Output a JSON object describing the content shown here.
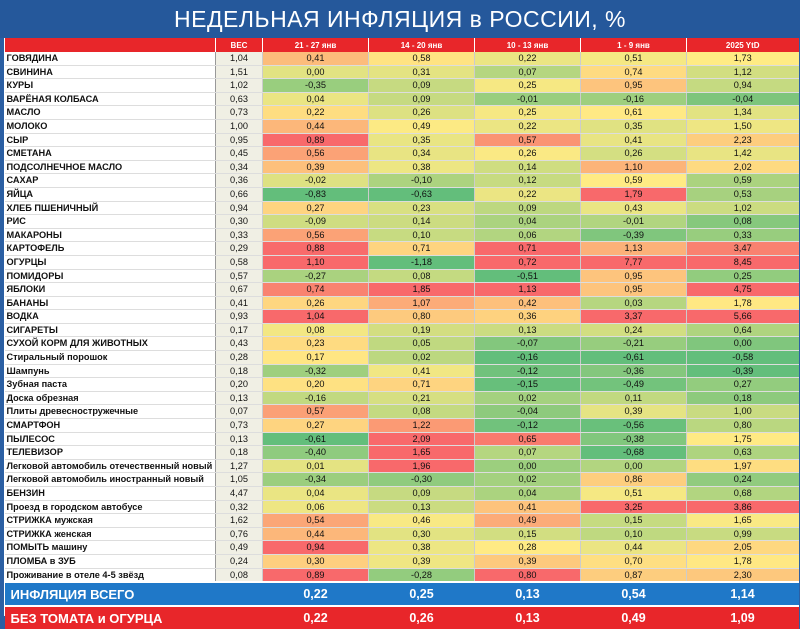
{
  "title": "НЕДЕЛЬНАЯ ИНФЛЯЦИЯ в РОССИИ, %",
  "colors": {
    "title_bg": "#25589b",
    "header_bg": "#e8262a",
    "total_bg": "#1f78c8",
    "excl_bg": "#e8262a"
  },
  "chart_data": {
    "type": "table",
    "columns": [
      "",
      "ВЕС",
      "21 - 27 янв",
      "14 - 20 янв",
      "10 - 13 янв",
      "1 - 9 янв",
      "2025 YtD"
    ],
    "rows": [
      {
        "name": "ГОВЯДИНА",
        "weight": "1,04",
        "v": [
          "0,41",
          "0,58",
          "0,22",
          "0,51",
          "1,73"
        ],
        "sep": false
      },
      {
        "name": "СВИНИНА",
        "weight": "1,51",
        "v": [
          "0,00",
          "0,31",
          "0,07",
          "0,74",
          "1,12"
        ],
        "sep": false
      },
      {
        "name": "КУРЫ",
        "weight": "1,02",
        "v": [
          "-0,35",
          "0,09",
          "0,25",
          "0,95",
          "0,94"
        ],
        "sep": false
      },
      {
        "name": "ВАРЁНАЯ КОЛБАСА",
        "weight": "0,63",
        "v": [
          "0,04",
          "0,09",
          "-0,01",
          "-0,16",
          "-0,04"
        ],
        "sep": false
      },
      {
        "name": "МАСЛО",
        "weight": "0,73",
        "v": [
          "0,22",
          "0,26",
          "0,25",
          "0,61",
          "1,34"
        ],
        "sep": true
      },
      {
        "name": "МОЛОКО",
        "weight": "1,00",
        "v": [
          "0,44",
          "0,49",
          "0,22",
          "0,35",
          "1,50"
        ],
        "sep": false
      },
      {
        "name": "СЫР",
        "weight": "0,95",
        "v": [
          "0,89",
          "0,35",
          "0,57",
          "0,41",
          "2,23"
        ],
        "sep": false
      },
      {
        "name": "СМЕТАНА",
        "weight": "0,45",
        "v": [
          "0,56",
          "0,34",
          "0,26",
          "0,26",
          "1,42"
        ],
        "sep": false
      },
      {
        "name": "ПОДСОЛНЕЧНОЕ МАСЛО",
        "weight": "0,34",
        "v": [
          "0,39",
          "0,38",
          "0,14",
          "1,10",
          "2,02"
        ],
        "sep": true
      },
      {
        "name": "САХАР",
        "weight": "0,36",
        "v": [
          "-0,02",
          "-0,10",
          "0,12",
          "0,59",
          "0,59"
        ],
        "sep": false
      },
      {
        "name": "ЯЙЦА",
        "weight": "0,66",
        "v": [
          "-0,83",
          "-0,63",
          "0,22",
          "1,79",
          "0,53"
        ],
        "sep": true
      },
      {
        "name": "ХЛЕБ ПШЕНИЧНЫЙ",
        "weight": "0,94",
        "v": [
          "0,27",
          "0,23",
          "0,09",
          "0,43",
          "1,02"
        ],
        "sep": false
      },
      {
        "name": "РИС",
        "weight": "0,30",
        "v": [
          "-0,09",
          "0,14",
          "0,04",
          "-0,01",
          "0,08"
        ],
        "sep": false
      },
      {
        "name": "МАКАРОНЫ",
        "weight": "0,33",
        "v": [
          "0,56",
          "0,10",
          "0,06",
          "-0,39",
          "0,33"
        ],
        "sep": false
      },
      {
        "name": "КАРТОФЕЛЬ",
        "weight": "0,29",
        "v": [
          "0,88",
          "0,71",
          "0,71",
          "1,13",
          "3,47"
        ],
        "sep": true
      },
      {
        "name": "ОГУРЦЫ",
        "weight": "0,58",
        "v": [
          "1,10",
          "-1,18",
          "0,72",
          "7,77",
          "8,45"
        ],
        "sep": false
      },
      {
        "name": "ПОМИДОРЫ",
        "weight": "0,57",
        "v": [
          "-0,27",
          "0,08",
          "-0,51",
          "0,95",
          "0,25"
        ],
        "sep": false
      },
      {
        "name": "ЯБЛОКИ",
        "weight": "0,67",
        "v": [
          "0,74",
          "1,85",
          "1,13",
          "0,95",
          "4,75"
        ],
        "sep": false
      },
      {
        "name": "БАНАНЫ",
        "weight": "0,41",
        "v": [
          "0,26",
          "1,07",
          "0,42",
          "0,03",
          "1,78"
        ],
        "sep": false
      },
      {
        "name": "ВОДКА",
        "weight": "0,93",
        "v": [
          "1,04",
          "0,80",
          "0,36",
          "3,37",
          "5,66"
        ],
        "sep": true
      },
      {
        "name": "СИГАРЕТЫ",
        "weight": "0,17",
        "v": [
          "0,08",
          "0,19",
          "0,13",
          "0,24",
          "0,64"
        ],
        "sep": false
      },
      {
        "name": "СУХОЙ КОРМ ДЛЯ ЖИВОТНЫХ",
        "weight": "0,43",
        "v": [
          "0,23",
          "0,05",
          "-0,07",
          "-0,21",
          "0,00"
        ],
        "sep": true
      },
      {
        "name": "Стиральный порошок",
        "weight": "0,28",
        "v": [
          "0,17",
          "0,02",
          "-0,16",
          "-0,61",
          "-0,58"
        ],
        "sep": true
      },
      {
        "name": "Шампунь",
        "weight": "0,18",
        "v": [
          "-0,32",
          "0,41",
          "-0,12",
          "-0,36",
          "-0,39"
        ],
        "sep": false
      },
      {
        "name": "Зубная паста",
        "weight": "0,20",
        "v": [
          "0,20",
          "0,71",
          "-0,15",
          "-0,49",
          "0,27"
        ],
        "sep": false
      },
      {
        "name": "Доска обрезная",
        "weight": "0,13",
        "v": [
          "-0,16",
          "0,21",
          "0,02",
          "0,11",
          "0,18"
        ],
        "sep": true
      },
      {
        "name": "Плиты древесностружечные",
        "weight": "0,07",
        "v": [
          "0,57",
          "0,08",
          "-0,04",
          "0,39",
          "1,00"
        ],
        "sep": false
      },
      {
        "name": "СМАРТФОН",
        "weight": "0,73",
        "v": [
          "0,27",
          "1,22",
          "-0,12",
          "-0,56",
          "0,80"
        ],
        "sep": true
      },
      {
        "name": "ПЫЛЕСОС",
        "weight": "0,13",
        "v": [
          "-0,61",
          "2,09",
          "0,65",
          "-0,38",
          "1,75"
        ],
        "sep": false
      },
      {
        "name": "ТЕЛЕВИЗОР",
        "weight": "0,18",
        "v": [
          "-0,40",
          "1,65",
          "0,07",
          "-0,68",
          "0,63"
        ],
        "sep": false
      },
      {
        "name": "Легковой автомобиль отечественный новый",
        "weight": "1,27",
        "v": [
          "0,01",
          "1,96",
          "0,00",
          "0,00",
          "1,97"
        ],
        "sep": true
      },
      {
        "name": "Легковой автомобиль иностранный новый",
        "weight": "1,05",
        "v": [
          "-0,34",
          "-0,30",
          "0,02",
          "0,86",
          "0,24"
        ],
        "sep": false
      },
      {
        "name": "БЕНЗИН",
        "weight": "4,47",
        "v": [
          "0,04",
          "0,09",
          "0,04",
          "0,51",
          "0,68"
        ],
        "sep": true
      },
      {
        "name": "Проезд в городском автобусе",
        "weight": "0,32",
        "v": [
          "0,06",
          "0,13",
          "0,41",
          "3,25",
          "3,86"
        ],
        "sep": true
      },
      {
        "name": "СТРИЖКА мужская",
        "weight": "1,62",
        "v": [
          "0,54",
          "0,46",
          "0,49",
          "0,15",
          "1,65"
        ],
        "sep": true
      },
      {
        "name": "СТРИЖКА женская",
        "weight": "0,76",
        "v": [
          "0,44",
          "0,30",
          "0,15",
          "0,10",
          "0,99"
        ],
        "sep": false
      },
      {
        "name": "ПОМЫТЬ машину",
        "weight": "0,49",
        "v": [
          "0,94",
          "0,38",
          "0,28",
          "0,44",
          "2,05"
        ],
        "sep": false
      },
      {
        "name": "ПЛОМБА в ЗУБ",
        "weight": "0,24",
        "v": [
          "0,30",
          "0,39",
          "0,39",
          "0,70",
          "1,78"
        ],
        "sep": false
      },
      {
        "name": "Проживание в отеле 4-5 звёзд",
        "weight": "0,08",
        "v": [
          "0,89",
          "-0,28",
          "0,80",
          "0,87",
          "2,30"
        ],
        "sep": false
      }
    ],
    "summary": [
      {
        "name": "ИНФЛЯЦИЯ ВСЕГО",
        "v": [
          "0,22",
          "0,25",
          "0,13",
          "0,54",
          "1,14"
        ],
        "kind": "total"
      },
      {
        "name": "БЕЗ ТОМАТА и ОГУРЦА",
        "v": [
          "0,22",
          "0,26",
          "0,13",
          "0,49",
          "1,09"
        ],
        "kind": "excl"
      }
    ]
  }
}
